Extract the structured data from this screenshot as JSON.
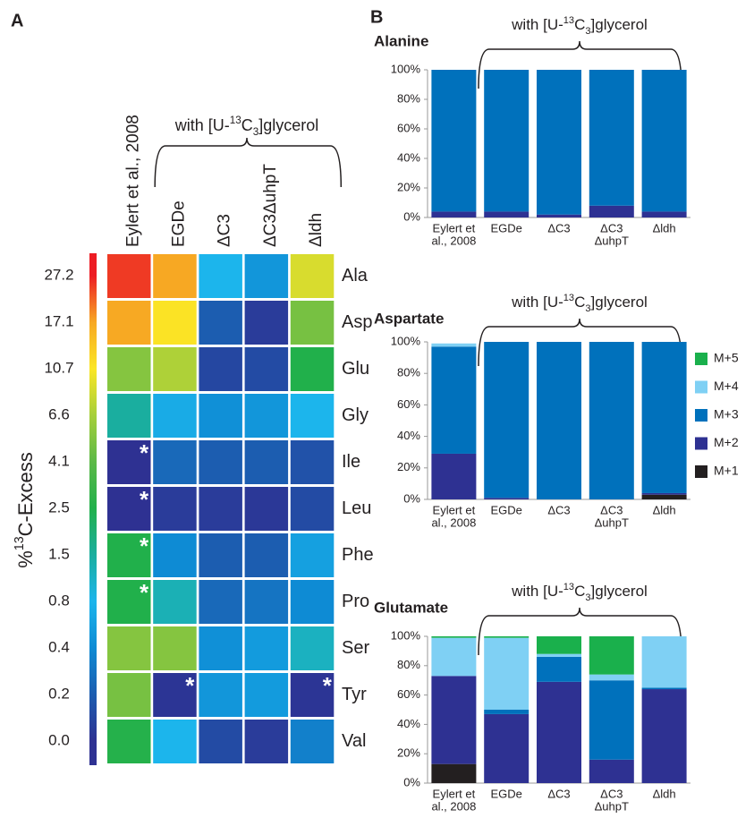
{
  "chart_data": [
    {
      "type": "heatmap",
      "panel": "A",
      "columns": [
        "Eylert et al., 2008",
        "EGDe",
        "ΔC3",
        "ΔC3ΔuhpT",
        "Δldh"
      ],
      "rows": [
        "Ala",
        "Asp",
        "Glu",
        "Gly",
        "Ile",
        "Leu",
        "Phe",
        "Pro",
        "Ser",
        "Tyr",
        "Val"
      ],
      "values": [
        [
          25,
          17.1,
          0.8,
          0.5,
          9
        ],
        [
          17,
          11,
          0.2,
          0.05,
          5
        ],
        [
          5.5,
          7,
          0.1,
          0.12,
          2.5
        ],
        [
          1.5,
          0.7,
          0.45,
          0.5,
          0.8
        ],
        [
          0,
          0.25,
          0.2,
          0.2,
          0.15
        ],
        [
          0,
          0.05,
          0.05,
          0.03,
          0.12
        ],
        [
          2.5,
          0.4,
          0.2,
          0.2,
          0.6
        ],
        [
          2.5,
          1.3,
          0.25,
          0.3,
          0.4
        ],
        [
          5.5,
          5.5,
          0.45,
          0.55,
          1.2
        ],
        [
          5,
          0.02,
          0.5,
          0.55,
          0.02
        ],
        [
          2.6,
          0.8,
          0.12,
          0.05,
          0.35
        ]
      ],
      "cell_labels": [
        [
          null,
          null,
          null,
          null,
          null
        ],
        [
          null,
          null,
          null,
          null,
          null
        ],
        [
          null,
          null,
          null,
          null,
          null
        ],
        [
          null,
          null,
          null,
          null,
          null
        ],
        [
          "*",
          null,
          null,
          null,
          null
        ],
        [
          "*",
          null,
          null,
          null,
          null
        ],
        [
          "*",
          null,
          null,
          null,
          null
        ],
        [
          "*",
          null,
          null,
          null,
          null
        ],
        [
          null,
          null,
          null,
          null,
          null
        ],
        [
          null,
          "*",
          null,
          null,
          "*"
        ],
        [
          null,
          null,
          null,
          null,
          null
        ]
      ],
      "colorbar_ticks": [
        {
          "value": 0,
          "label": "0.0"
        },
        0.2,
        0.4,
        0.8,
        1.5,
        2.5,
        4.1,
        6.6,
        10.7,
        17.1,
        27.2
      ],
      "colorscale": [
        "#2e3192",
        "#1c5db0",
        "#0e8bd4",
        "#1cb5ec",
        "#1aae9f",
        "#21b04b",
        "#5cb947",
        "#a6cf3a",
        "#fbe625",
        "#f7a823",
        "#ed1c24"
      ],
      "colorbar_label": {
        "start": "%",
        "sup": "13",
        "end": "C-Excess"
      },
      "bracket_label": {
        "start": "with [U-",
        "sup": "13",
        "mid": "C",
        "sub": "3",
        "end": "]glycerol"
      }
    },
    {
      "type": "bar",
      "stacked": true,
      "panel": "B",
      "title": "Alanine",
      "bracket_label": {
        "start": "with [U-",
        "sup": "13",
        "mid": "C",
        "sub": "3",
        "end": "]glycerol"
      },
      "categories": [
        [
          "Eylert et",
          "al., 2008"
        ],
        [
          "EGDe"
        ],
        [
          "ΔC3"
        ],
        [
          "ΔC3",
          "ΔuhpT"
        ],
        [
          "Δldh"
        ]
      ],
      "series": [
        {
          "name": "M+1",
          "color": "#231f20",
          "values": [
            0,
            0,
            0,
            0,
            0
          ]
        },
        {
          "name": "M+2",
          "color": "#2e3192",
          "values": [
            4,
            4,
            2,
            8,
            4
          ]
        },
        {
          "name": "M+3",
          "color": "#0071bc",
          "values": [
            96,
            96,
            98,
            92,
            96
          ]
        },
        {
          "name": "M+4",
          "color": "#7fd0f4",
          "values": [
            0,
            0,
            0,
            0,
            0
          ]
        },
        {
          "name": "M+5",
          "color": "#1ab04c",
          "values": [
            0,
            0,
            0,
            0,
            0
          ]
        }
      ],
      "ylim": [
        0,
        100
      ],
      "yticks": [
        {
          "value": 0,
          "label": "0%"
        },
        {
          "value": 20,
          "label": "20%"
        },
        {
          "value": 40,
          "label": "40%"
        },
        {
          "value": 60,
          "label": "60%"
        },
        {
          "value": 80,
          "label": "80%"
        },
        {
          "value": 100,
          "label": "100%"
        }
      ],
      "legend": false
    },
    {
      "type": "bar",
      "stacked": true,
      "title": "Aspartate",
      "bracket_label": {
        "start": "with [U-",
        "sup": "13",
        "mid": "C",
        "sub": "3",
        "end": "]glycerol"
      },
      "categories": [
        [
          "Eylert et",
          "al., 2008"
        ],
        [
          "EGDe"
        ],
        [
          "ΔC3"
        ],
        [
          "ΔC3",
          "ΔuhpT"
        ],
        [
          "Δldh"
        ]
      ],
      "series": [
        {
          "name": "M+1",
          "color": "#231f20",
          "values": [
            0,
            0,
            0,
            0,
            3
          ]
        },
        {
          "name": "M+2",
          "color": "#2e3192",
          "values": [
            29,
            1,
            0,
            0,
            1
          ]
        },
        {
          "name": "M+3",
          "color": "#0071bc",
          "values": [
            68,
            99,
            100,
            100,
            96
          ]
        },
        {
          "name": "M+4",
          "color": "#7fd0f4",
          "values": [
            2,
            0,
            0,
            0,
            0
          ]
        },
        {
          "name": "M+5",
          "color": "#1ab04c",
          "values": [
            0,
            0,
            0,
            0,
            0
          ]
        }
      ],
      "ylim": [
        0,
        100
      ],
      "yticks": [
        {
          "value": 0,
          "label": "0%"
        },
        {
          "value": 20,
          "label": "20%"
        },
        {
          "value": 40,
          "label": "40%"
        },
        {
          "value": 60,
          "label": "60%"
        },
        {
          "value": 80,
          "label": "80%"
        },
        {
          "value": 100,
          "label": "100%"
        }
      ],
      "legend": "right"
    },
    {
      "type": "bar",
      "stacked": true,
      "title": "Glutamate",
      "bracket_label": {
        "start": "with [U-",
        "sup": "13",
        "mid": "C",
        "sub": "3",
        "end": "]glycerol"
      },
      "categories": [
        [
          "Eylert et",
          "al., 2008"
        ],
        [
          "EGDe"
        ],
        [
          "ΔC3"
        ],
        [
          "ΔC3",
          "ΔuhpT"
        ],
        [
          "Δldh"
        ]
      ],
      "series": [
        {
          "name": "M+1",
          "color": "#231f20",
          "values": [
            13,
            0,
            0,
            0,
            0
          ]
        },
        {
          "name": "M+2",
          "color": "#2e3192",
          "values": [
            60,
            47,
            69,
            16,
            64
          ]
        },
        {
          "name": "M+3",
          "color": "#0071bc",
          "values": [
            0,
            3,
            17,
            54,
            1
          ]
        },
        {
          "name": "M+4",
          "color": "#7fd0f4",
          "values": [
            26,
            49,
            2,
            4,
            35
          ]
        },
        {
          "name": "M+5",
          "color": "#1ab04c",
          "values": [
            1,
            1,
            12,
            26,
            0
          ]
        }
      ],
      "ylim": [
        0,
        100
      ],
      "yticks": [
        {
          "value": 0,
          "label": "0%"
        },
        {
          "value": 20,
          "label": "20%"
        },
        {
          "value": 40,
          "label": "40%"
        },
        {
          "value": 60,
          "label": "60%"
        },
        {
          "value": 80,
          "label": "80%"
        },
        {
          "value": 100,
          "label": "100%"
        }
      ],
      "legend": false
    }
  ]
}
